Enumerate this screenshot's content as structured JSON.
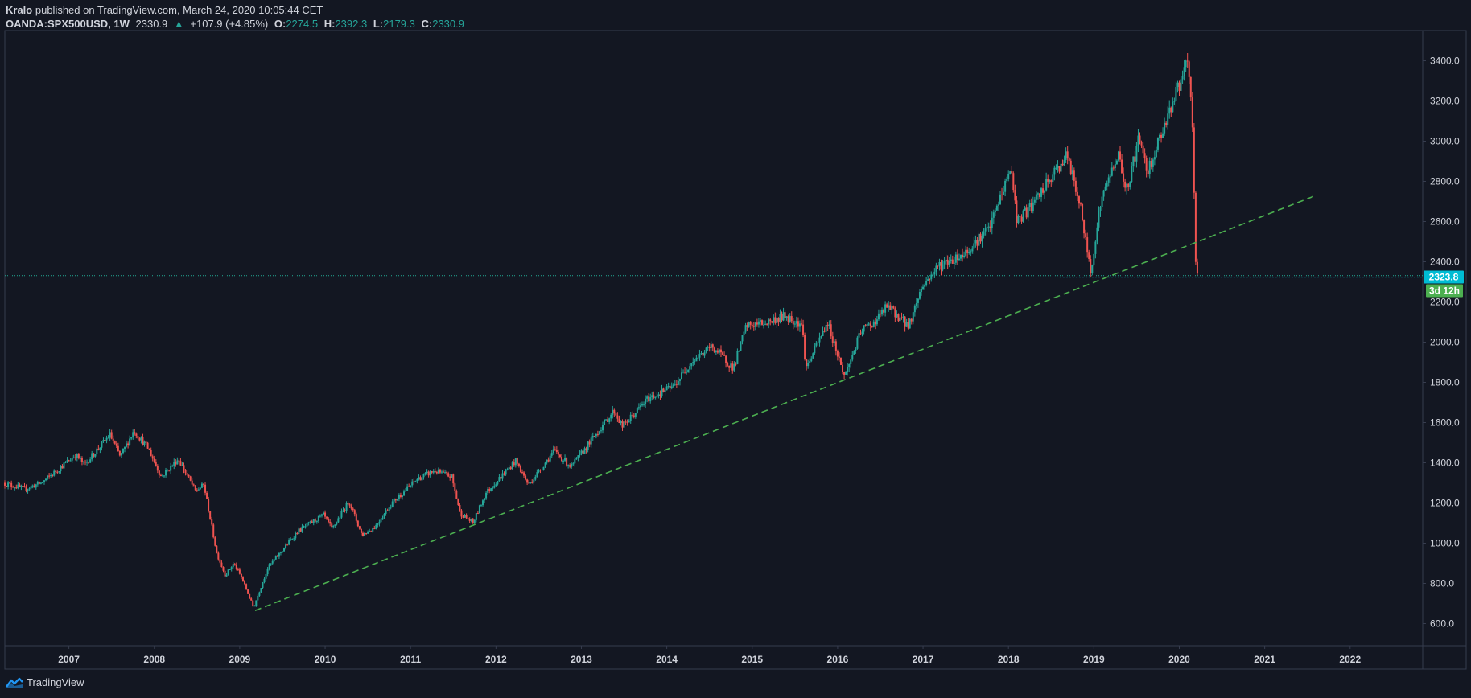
{
  "header": {
    "author": "Kralo",
    "published": "published on TradingView.com, March 24, 2020 10:05:44 CET",
    "symbol": "OANDA:SPX500USD, 1W",
    "last": "2330.9",
    "change_arrow": "▲",
    "change": "+107.9 (+4.85%)",
    "o_label": "O:",
    "o_value": "2274.5",
    "h_label": "H:",
    "h_value": "2392.3",
    "l_label": "L:",
    "l_value": "2179.3",
    "c_label": "C:",
    "c_value": "2330.9"
  },
  "footer": {
    "brand": "TradingView",
    "logo_icon": "tradingview-logo-icon"
  },
  "colors": {
    "background": "#131722",
    "up": "#26a69a",
    "down": "#ef5350",
    "trendline": "#4caf50",
    "price_line": "#22ab94",
    "hline": "#00bcd4",
    "price_tag": "#00bcd4",
    "countdown_tag": "#4caf50",
    "border": "#363c4e"
  },
  "chart_data": {
    "type": "candlestick",
    "title": "",
    "xlabel": "",
    "ylabel": "",
    "x_range": [
      2006.25,
      2022.85
    ],
    "ylim": [
      490,
      3550
    ],
    "y_ticks": [
      600,
      800,
      1000,
      1200,
      1400,
      1600,
      1800,
      2000,
      2200,
      2400,
      2600,
      2800,
      3000,
      3200,
      3400
    ],
    "y_tick_labels": [
      "600.0",
      "800.0",
      "1000.0",
      "1200.0",
      "1400.0",
      "1600.0",
      "1800.0",
      "2000.0",
      "2200.0",
      "2400.0",
      "2600.0",
      "2800.0",
      "3000.0",
      "3200.0",
      "3400.0"
    ],
    "x_ticks": [
      2007,
      2008,
      2009,
      2010,
      2011,
      2012,
      2013,
      2014,
      2015,
      2016,
      2017,
      2018,
      2019,
      2020,
      2021,
      2022
    ],
    "x_tick_labels": [
      "2007",
      "2008",
      "2009",
      "2010",
      "2011",
      "2012",
      "2013",
      "2014",
      "2015",
      "2016",
      "2017",
      "2018",
      "2019",
      "2020",
      "2021",
      "2022"
    ],
    "price_path": [
      [
        2006.25,
        1300
      ],
      [
        2006.5,
        1270
      ],
      [
        2006.7,
        1300
      ],
      [
        2007.1,
        1440
      ],
      [
        2007.2,
        1390
      ],
      [
        2007.5,
        1540
      ],
      [
        2007.62,
        1430
      ],
      [
        2007.78,
        1560
      ],
      [
        2007.95,
        1470
      ],
      [
        2008.1,
        1330
      ],
      [
        2008.3,
        1420
      ],
      [
        2008.5,
        1260
      ],
      [
        2008.6,
        1290
      ],
      [
        2008.75,
        950
      ],
      [
        2008.85,
        840
      ],
      [
        2008.95,
        900
      ],
      [
        2009.05,
        820
      ],
      [
        2009.18,
        680
      ],
      [
        2009.35,
        880
      ],
      [
        2009.45,
        930
      ],
      [
        2009.7,
        1060
      ],
      [
        2010.0,
        1140
      ],
      [
        2010.1,
        1070
      ],
      [
        2010.3,
        1210
      ],
      [
        2010.45,
        1040
      ],
      [
        2010.6,
        1080
      ],
      [
        2010.8,
        1200
      ],
      [
        2011.1,
        1320
      ],
      [
        2011.3,
        1360
      ],
      [
        2011.5,
        1330
      ],
      [
        2011.6,
        1150
      ],
      [
        2011.75,
        1100
      ],
      [
        2011.9,
        1250
      ],
      [
        2012.25,
        1410
      ],
      [
        2012.4,
        1290
      ],
      [
        2012.7,
        1460
      ],
      [
        2012.9,
        1380
      ],
      [
        2013.4,
        1660
      ],
      [
        2013.5,
        1580
      ],
      [
        2013.8,
        1720
      ],
      [
        2014.1,
        1780
      ],
      [
        2014.3,
        1900
      ],
      [
        2014.55,
        1980
      ],
      [
        2014.8,
        1870
      ],
      [
        2014.95,
        2080
      ],
      [
        2015.2,
        2100
      ],
      [
        2015.4,
        2130
      ],
      [
        2015.6,
        2090
      ],
      [
        2015.65,
        1870
      ],
      [
        2015.9,
        2100
      ],
      [
        2016.1,
        1830
      ],
      [
        2016.3,
        2060
      ],
      [
        2016.45,
        2100
      ],
      [
        2016.6,
        2180
      ],
      [
        2016.85,
        2080
      ],
      [
        2017.0,
        2270
      ],
      [
        2017.2,
        2380
      ],
      [
        2017.5,
        2440
      ],
      [
        2017.8,
        2570
      ],
      [
        2018.05,
        2870
      ],
      [
        2018.12,
        2600
      ],
      [
        2018.3,
        2680
      ],
      [
        2018.7,
        2930
      ],
      [
        2018.85,
        2700
      ],
      [
        2018.98,
        2350
      ],
      [
        2019.1,
        2700
      ],
      [
        2019.3,
        2940
      ],
      [
        2019.4,
        2750
      ],
      [
        2019.55,
        3020
      ],
      [
        2019.65,
        2850
      ],
      [
        2019.9,
        3150
      ],
      [
        2020.12,
        3390
      ],
      [
        2020.17,
        3100
      ],
      [
        2020.2,
        2620
      ],
      [
        2020.22,
        2250
      ],
      [
        2020.23,
        2330
      ]
    ],
    "annotations": {
      "trendline": {
        "from": [
          2009.18,
          665
        ],
        "to": [
          2021.6,
          2730
        ],
        "style": "dashed"
      },
      "horizontal_line": {
        "value": 2323.8,
        "from_x": 2018.6,
        "style": "dotted"
      },
      "price_line": {
        "value": 2330.9,
        "style": "dotted"
      },
      "price_tag": "2323.8",
      "countdown_tag": "3d 12h"
    }
  }
}
